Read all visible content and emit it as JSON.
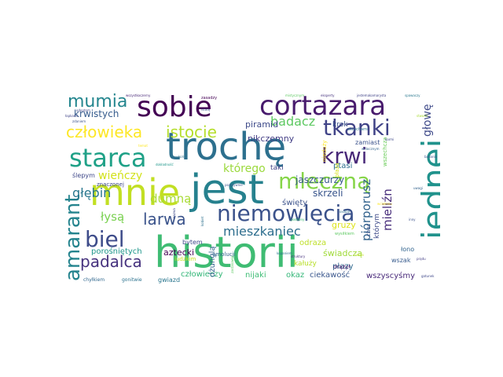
{
  "cloud": {
    "words": [
      {
        "text": "historii",
        "color": "#3fbc73"
      },
      {
        "text": "trochę",
        "color": "#2d708e"
      },
      {
        "text": "jest",
        "color": "#26818e"
      },
      {
        "text": "jednej",
        "color": "#20928c"
      },
      {
        "text": "mnie",
        "color": "#c2df23"
      },
      {
        "text": "cortazara",
        "color": "#481b6d"
      },
      {
        "text": "sobie",
        "color": "#440154"
      },
      {
        "text": "starca",
        "color": "#1fa187"
      },
      {
        "text": "niemowlęcia",
        "color": "#3b528b"
      },
      {
        "text": "mleczną",
        "color": "#86d549"
      },
      {
        "text": "tkanki",
        "color": "#404387"
      },
      {
        "text": "krwi",
        "color": "#482878"
      },
      {
        "text": "biel",
        "color": "#3e4c8a"
      },
      {
        "text": "amarant",
        "color": "#25848e"
      },
      {
        "text": "człowieka",
        "color": "#fde725"
      },
      {
        "text": "istocie",
        "color": "#b5de2b"
      },
      {
        "text": "mumia",
        "color": "#24868e"
      },
      {
        "text": "padalca",
        "color": "#46327e"
      },
      {
        "text": "larwa",
        "color": "#3a538b"
      },
      {
        "text": "mieszkaniec",
        "color": "#2e6e8e"
      },
      {
        "text": "badacz",
        "color": "#5ec962"
      },
      {
        "text": "głębin",
        "color": "#2a778e"
      },
      {
        "text": "mieliźn",
        "color": "#472d7b"
      },
      {
        "text": "piórporusz",
        "color": "#33638d"
      },
      {
        "text": "łysą",
        "color": "#7ad151"
      },
      {
        "text": "dumną",
        "color": "#a8db34"
      },
      {
        "text": "którego",
        "color": "#9bd93c"
      },
      {
        "text": "wieńczy",
        "color": "#d2e21b"
      },
      {
        "text": "głowę",
        "color": "#3e4989"
      },
      {
        "text": "skrzeli",
        "color": "#39558c"
      },
      {
        "text": "jaszczurzy",
        "color": "#38598c"
      },
      {
        "text": "krwistych",
        "color": "#365c8d"
      },
      {
        "text": "aztecki",
        "color": "#440154"
      },
      {
        "text": "porośniętych",
        "color": "#1f978b"
      },
      {
        "text": "człowieczy",
        "color": "#35b779"
      },
      {
        "text": "ciekawość",
        "color": "#39568c"
      },
      {
        "text": "nijaki",
        "color": "#3dbc74"
      },
      {
        "text": "okaz",
        "color": "#35b779"
      },
      {
        "text": "wszyscyśmy",
        "color": "#482979"
      },
      {
        "text": "gwiazd",
        "color": "#2a768e"
      },
      {
        "text": "dżunglą",
        "color": "#33638d"
      },
      {
        "text": "płazy",
        "color": "#31688e"
      },
      {
        "text": "świadczą",
        "color": "#a0da39"
      },
      {
        "text": "odraza",
        "color": "#bddf26"
      },
      {
        "text": "nikczemny",
        "color": "#433e85"
      },
      {
        "text": "piramid",
        "color": "#3e4a89"
      },
      {
        "text": "święty",
        "color": "#3b528b"
      },
      {
        "text": "ptasi",
        "color": "#2e6f8e"
      },
      {
        "text": "gruzy",
        "color": "#dde318"
      },
      {
        "text": "krok",
        "color": "#3b528b"
      },
      {
        "text": "taki",
        "color": "#414487"
      },
      {
        "text": "wszak",
        "color": "#375b8d"
      },
      {
        "text": "którym",
        "color": "#3e4a89"
      },
      {
        "text": "chyłkiem",
        "color": "#31688e"
      },
      {
        "text": "gonitwie",
        "color": "#2c728e"
      },
      {
        "text": "ślepym",
        "color": "#3f4889"
      },
      {
        "text": "drążył",
        "color": "#48186a"
      },
      {
        "text": "zamiast",
        "color": "#3b528b"
      },
      {
        "text": "bytem",
        "color": "#3e4989"
      },
      {
        "text": "emolucji",
        "color": "#32658e"
      },
      {
        "text": "kałuży",
        "color": "#b8de29"
      },
      {
        "text": "łono",
        "color": "#32648e"
      },
      {
        "text": "ludzkim",
        "color": "#c5e021"
      },
      {
        "text": "znaczonej",
        "color": "#3e4989"
      },
      {
        "text": "zasadzy",
        "color": "#440154"
      },
      {
        "text": "okruchami",
        "color": "#2d708e"
      },
      {
        "text": "płaza",
        "color": "#d8e219"
      },
      {
        "text": "choć",
        "color": "#3b528b"
      },
      {
        "text": "wszechcza",
        "color": "#6ccd5a"
      },
      {
        "text": "nieduży",
        "color": "#fde725"
      },
      {
        "text": "wszystkoczerny",
        "color": "#482878"
      },
      {
        "text": "mistycznym",
        "color": "#5ec962"
      },
      {
        "text": "eksperty",
        "color": "#46327e"
      },
      {
        "text": "jestemakamarysta",
        "color": "#404387"
      },
      {
        "text": "spawaczy",
        "color": "#2a788e"
      },
      {
        "text": "istotę",
        "color": "#3b528b"
      },
      {
        "text": "odeptom",
        "color": "#3f4889"
      },
      {
        "text": "łapkami",
        "color": "#414487"
      },
      {
        "text": "zdaniem",
        "color": "#3b528b"
      },
      {
        "text": "widocznym",
        "color": "#33638d"
      },
      {
        "text": "podobny",
        "color": "#3dbc74"
      },
      {
        "text": "temat",
        "color": "#fde725"
      },
      {
        "text": "końca",
        "color": "#2d708e"
      },
      {
        "text": "stworki",
        "color": "#a8db34"
      },
      {
        "text": "karmi",
        "color": "#3e4989"
      },
      {
        "text": "nazwa",
        "color": "#3e4a89"
      },
      {
        "text": "kobiet",
        "color": "#2d708e"
      },
      {
        "text": "wysiłkiem",
        "color": "#5ec962"
      },
      {
        "text": "inny",
        "color": "#3b528b"
      },
      {
        "text": "prądu",
        "color": "#433e85"
      },
      {
        "text": "gatunek",
        "color": "#3f4889"
      },
      {
        "text": "kopaniem",
        "color": "#2c728e"
      },
      {
        "text": "struktury",
        "color": "#46327e"
      },
      {
        "text": "serca",
        "color": "#c2df23"
      },
      {
        "text": "pozytywnie",
        "color": "#3b528b"
      },
      {
        "text": "dokładność",
        "color": "#1f978b"
      },
      {
        "text": "wcieleniu",
        "color": "#fde725"
      },
      {
        "text": "uwagi",
        "color": "#33638d"
      },
      {
        "text": "osobie",
        "color": "#2e6e8e"
      },
      {
        "text": "zastanawia",
        "color": "#5ec962"
      },
      {
        "text": "badania",
        "color": "#3b528b"
      }
    ]
  }
}
